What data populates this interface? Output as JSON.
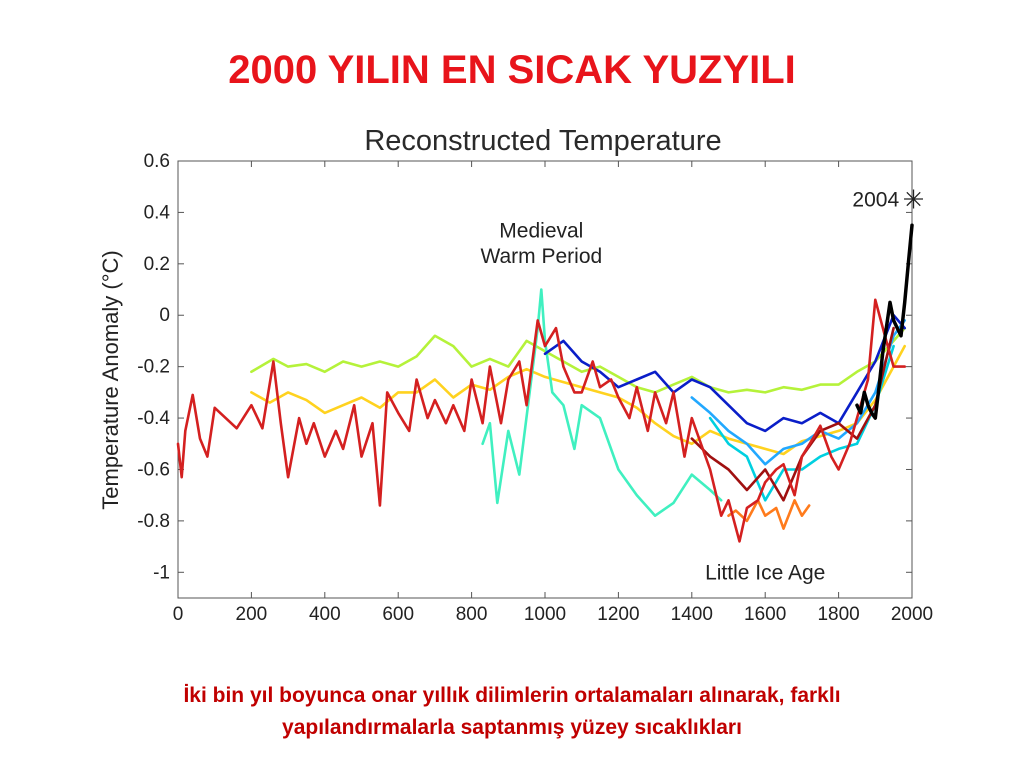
{
  "slide": {
    "title": "2000 YILIN EN SICAK YUZYILI",
    "caption_line1": "İki bin yıl boyunca onar yıllık dilimlerin ortalamaları alınarak, farklı",
    "caption_line2": "yapılandırmalarla saptanmış yüzey sıcaklıkları",
    "title_color": "#e8141b",
    "caption_color": "#c00000"
  },
  "chart_data": {
    "type": "line",
    "title": "Reconstructed Temperature",
    "xlabel": "",
    "ylabel": "Temperature Anomaly (°C)",
    "xlim": [
      0,
      2000
    ],
    "ylim": [
      -1.1,
      0.6
    ],
    "xticks": [
      0,
      200,
      400,
      600,
      800,
      1000,
      1200,
      1400,
      1600,
      1800,
      2000
    ],
    "yticks": [
      0.6,
      0.4,
      0.2,
      0,
      -0.2,
      -0.4,
      -0.6,
      -0.8,
      -1
    ],
    "ytick_labels": [
      "0.6",
      "0.4",
      "0.2",
      "0",
      "-0.2",
      "-0.4",
      "-0.6",
      "-0.8",
      "-1"
    ],
    "grid": false,
    "annotations": [
      {
        "text": "Medieval",
        "x": 990,
        "y": 0.33
      },
      {
        "text": "Warm Period",
        "x": 990,
        "y": 0.23
      },
      {
        "text": "Little Ice Age",
        "x": 1600,
        "y": -1.0
      },
      {
        "text": "2004",
        "x": 1965,
        "y": 0.45
      }
    ],
    "marker": {
      "symbol": "✳",
      "x": 2004,
      "y": 0.45
    },
    "series": [
      {
        "color": "#b5f23a",
        "x": [
          200,
          260,
          300,
          350,
          400,
          450,
          500,
          550,
          600,
          650,
          700,
          750,
          800,
          850,
          900,
          950,
          1000,
          1050,
          1100,
          1150,
          1200,
          1250,
          1300,
          1350,
          1400,
          1450,
          1500,
          1550,
          1600,
          1650,
          1700,
          1750,
          1800,
          1850,
          1900,
          1950,
          1980
        ],
        "y": [
          -0.22,
          -0.17,
          -0.2,
          -0.19,
          -0.22,
          -0.18,
          -0.2,
          -0.18,
          -0.2,
          -0.16,
          -0.08,
          -0.12,
          -0.2,
          -0.17,
          -0.2,
          -0.1,
          -0.14,
          -0.18,
          -0.22,
          -0.2,
          -0.24,
          -0.28,
          -0.3,
          -0.27,
          -0.24,
          -0.28,
          -0.3,
          -0.29,
          -0.3,
          -0.28,
          -0.29,
          -0.27,
          -0.27,
          -0.22,
          -0.18,
          -0.1,
          -0.05
        ]
      },
      {
        "color": "#ffd21f",
        "x": [
          200,
          250,
          300,
          350,
          400,
          450,
          500,
          550,
          600,
          650,
          700,
          750,
          800,
          850,
          900,
          950,
          1000,
          1050,
          1100,
          1150,
          1200,
          1250,
          1300,
          1350,
          1400,
          1450,
          1500,
          1550,
          1600,
          1650,
          1700,
          1750,
          1800,
          1850,
          1900,
          1950,
          1980
        ],
        "y": [
          -0.3,
          -0.34,
          -0.3,
          -0.33,
          -0.38,
          -0.35,
          -0.32,
          -0.36,
          -0.3,
          -0.3,
          -0.25,
          -0.32,
          -0.27,
          -0.29,
          -0.24,
          -0.21,
          -0.24,
          -0.26,
          -0.28,
          -0.3,
          -0.32,
          -0.36,
          -0.42,
          -0.47,
          -0.5,
          -0.45,
          -0.48,
          -0.5,
          -0.52,
          -0.54,
          -0.49,
          -0.47,
          -0.45,
          -0.42,
          -0.33,
          -0.2,
          -0.12
        ]
      },
      {
        "color": "#40f0c0",
        "x": [
          830,
          850,
          870,
          900,
          930,
          960,
          980,
          990,
          1000,
          1020,
          1050,
          1080,
          1100,
          1150,
          1200,
          1250,
          1300,
          1350,
          1400,
          1450,
          1480
        ],
        "y": [
          -0.5,
          -0.42,
          -0.73,
          -0.45,
          -0.62,
          -0.28,
          -0.05,
          0.1,
          -0.1,
          -0.3,
          -0.35,
          -0.52,
          -0.35,
          -0.4,
          -0.6,
          -0.7,
          -0.78,
          -0.73,
          -0.62,
          -0.68,
          -0.72
        ]
      },
      {
        "color": "#0a1ec8",
        "x": [
          1000,
          1050,
          1100,
          1150,
          1200,
          1250,
          1300,
          1350,
          1400,
          1450,
          1500,
          1550,
          1600,
          1650,
          1700,
          1750,
          1800,
          1850,
          1900,
          1950,
          1980
        ],
        "y": [
          -0.15,
          -0.1,
          -0.18,
          -0.22,
          -0.28,
          -0.25,
          -0.22,
          -0.3,
          -0.25,
          -0.28,
          -0.35,
          -0.42,
          -0.45,
          -0.4,
          -0.42,
          -0.38,
          -0.42,
          -0.3,
          -0.18,
          0.0,
          -0.05
        ]
      },
      {
        "color": "#22a8ff",
        "x": [
          1400,
          1450,
          1500,
          1550,
          1600,
          1650,
          1700,
          1750,
          1800,
          1850,
          1900,
          1950,
          1980
        ],
        "y": [
          -0.32,
          -0.38,
          -0.45,
          -0.5,
          -0.58,
          -0.52,
          -0.5,
          -0.45,
          -0.48,
          -0.42,
          -0.3,
          -0.08,
          -0.02
        ]
      },
      {
        "color": "#00d0e0",
        "x": [
          1450,
          1500,
          1550,
          1600,
          1650,
          1700,
          1750,
          1800,
          1850,
          1900,
          1950
        ],
        "y": [
          -0.4,
          -0.5,
          -0.55,
          -0.72,
          -0.6,
          -0.6,
          -0.55,
          -0.52,
          -0.5,
          -0.35,
          -0.12
        ]
      },
      {
        "color": "#ff7b1c",
        "x": [
          1500,
          1520,
          1550,
          1580,
          1600,
          1630,
          1650,
          1680,
          1700,
          1720
        ],
        "y": [
          -0.78,
          -0.76,
          -0.8,
          -0.72,
          -0.78,
          -0.75,
          -0.83,
          -0.72,
          -0.78,
          -0.74
        ]
      },
      {
        "color": "#a01010",
        "x": [
          1400,
          1450,
          1500,
          1550,
          1600,
          1650,
          1700,
          1750,
          1800,
          1850,
          1900,
          1950
        ],
        "y": [
          -0.48,
          -0.55,
          -0.6,
          -0.68,
          -0.6,
          -0.72,
          -0.55,
          -0.45,
          -0.42,
          -0.48,
          -0.35,
          -0.05
        ]
      },
      {
        "color": "#d42020",
        "x": [
          0,
          10,
          20,
          40,
          60,
          80,
          100,
          130,
          160,
          200,
          230,
          260,
          280,
          300,
          330,
          350,
          370,
          400,
          430,
          450,
          480,
          500,
          530,
          550,
          570,
          600,
          630,
          650,
          680,
          700,
          730,
          750,
          780,
          800,
          830,
          850,
          880,
          900,
          930,
          950,
          980,
          1000,
          1030,
          1050,
          1080,
          1100,
          1130,
          1150,
          1180,
          1200,
          1230,
          1250,
          1280,
          1300,
          1330,
          1350,
          1380,
          1400,
          1430,
          1450,
          1480,
          1500,
          1530,
          1550,
          1580,
          1600,
          1630,
          1650,
          1680,
          1700,
          1730,
          1750,
          1780,
          1800,
          1830,
          1850,
          1880,
          1900,
          1930,
          1950,
          1980
        ],
        "y": [
          -0.5,
          -0.63,
          -0.45,
          -0.31,
          -0.48,
          -0.55,
          -0.36,
          -0.4,
          -0.44,
          -0.35,
          -0.44,
          -0.18,
          -0.42,
          -0.63,
          -0.4,
          -0.5,
          -0.42,
          -0.55,
          -0.45,
          -0.52,
          -0.35,
          -0.55,
          -0.42,
          -0.74,
          -0.3,
          -0.38,
          -0.45,
          -0.25,
          -0.4,
          -0.33,
          -0.42,
          -0.35,
          -0.45,
          -0.25,
          -0.42,
          -0.2,
          -0.42,
          -0.25,
          -0.18,
          -0.35,
          -0.02,
          -0.12,
          -0.05,
          -0.2,
          -0.3,
          -0.3,
          -0.18,
          -0.28,
          -0.25,
          -0.32,
          -0.4,
          -0.28,
          -0.45,
          -0.3,
          -0.42,
          -0.3,
          -0.55,
          -0.4,
          -0.52,
          -0.6,
          -0.78,
          -0.72,
          -0.88,
          -0.75,
          -0.72,
          -0.65,
          -0.6,
          -0.58,
          -0.7,
          -0.55,
          -0.48,
          -0.43,
          -0.55,
          -0.6,
          -0.5,
          -0.4,
          -0.25,
          0.06,
          -0.1,
          -0.2,
          -0.2
        ]
      },
      {
        "color": "#000000",
        "x": [
          1850,
          1860,
          1870,
          1880,
          1890,
          1900,
          1910,
          1920,
          1930,
          1940,
          1950,
          1960,
          1970,
          1980,
          1990,
          2000
        ],
        "y": [
          -0.35,
          -0.38,
          -0.3,
          -0.35,
          -0.38,
          -0.4,
          -0.28,
          -0.15,
          -0.05,
          0.05,
          -0.02,
          -0.05,
          -0.08,
          0.05,
          0.2,
          0.35
        ]
      }
    ]
  }
}
